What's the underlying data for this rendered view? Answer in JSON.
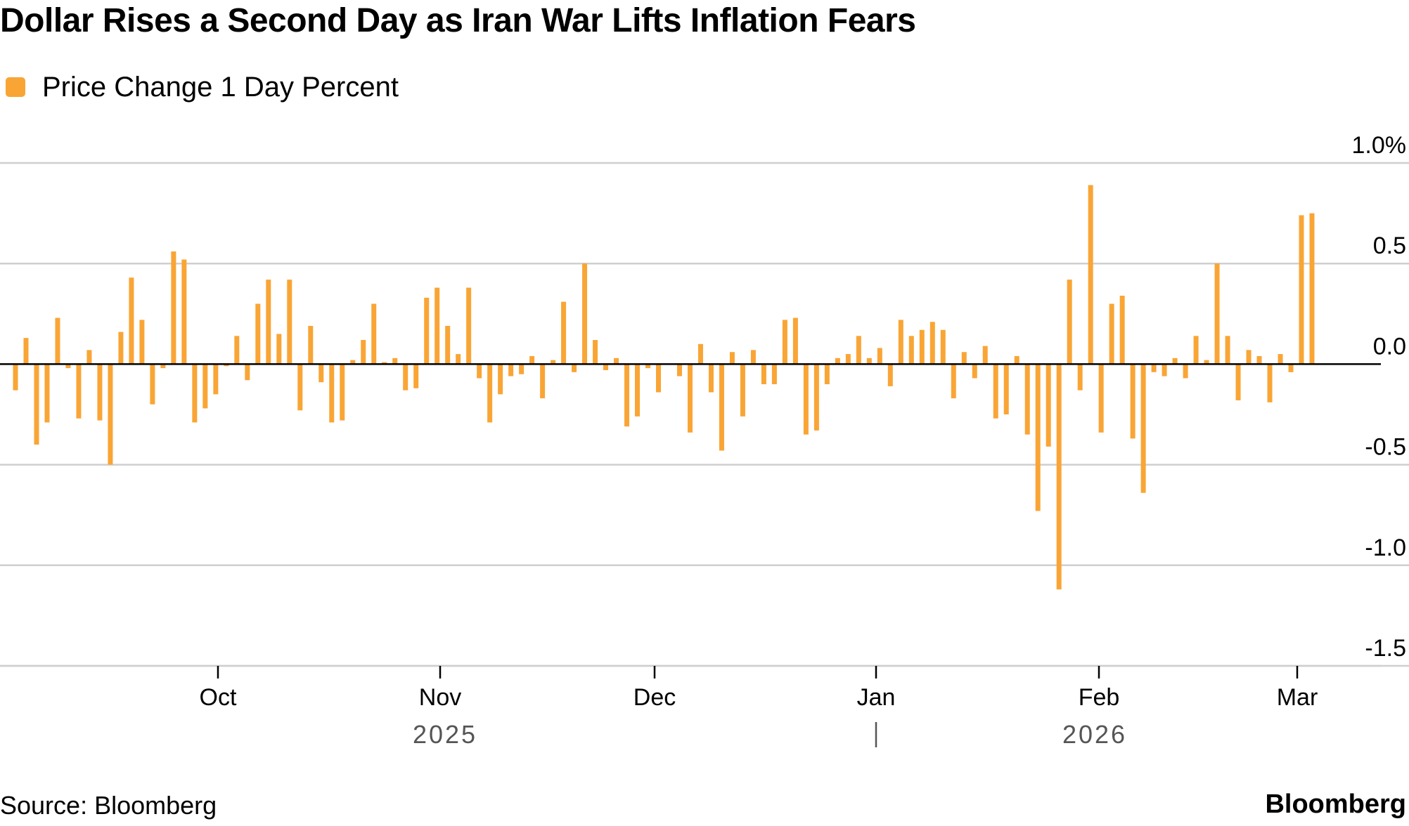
{
  "title": "Dollar Rises a Second Day as Iran War Lifts Inflation Fears",
  "source": "Source: Bloomberg",
  "brand": "Bloomberg",
  "chart_data": {
    "type": "bar",
    "bar_color": "#F9A535",
    "series": [
      {
        "name": "Price Change 1 Day Percent"
      }
    ],
    "ylim": [
      -1.5,
      1.0
    ],
    "yticks": [
      1.0,
      0.5,
      0.0,
      -0.5,
      -1.0,
      -1.5
    ],
    "ytick_labels": [
      "1.0%",
      "0.5",
      "0.0",
      "-0.5",
      "-1.0",
      "-1.5"
    ],
    "xtick_labels": [
      "Oct",
      "Nov",
      "Dec",
      "Jan",
      "Feb",
      "Mar"
    ],
    "year_labels": [
      "2025",
      "2026"
    ],
    "grid": true,
    "values": [
      -0.13,
      0.13,
      -0.4,
      -0.29,
      0.23,
      -0.02,
      -0.27,
      0.07,
      -0.28,
      -0.5,
      0.16,
      0.43,
      0.22,
      -0.2,
      -0.02,
      0.56,
      0.52,
      -0.29,
      -0.22,
      -0.15,
      -0.01,
      0.14,
      -0.08,
      0.3,
      0.42,
      0.15,
      0.42,
      -0.23,
      0.19,
      -0.09,
      -0.29,
      -0.28,
      0.02,
      0.12,
      0.3,
      0.01,
      0.03,
      -0.13,
      -0.12,
      0.33,
      0.38,
      0.19,
      0.05,
      0.38,
      -0.07,
      -0.29,
      -0.15,
      -0.06,
      -0.05,
      0.04,
      -0.17,
      0.02,
      0.31,
      -0.04,
      0.5,
      0.12,
      -0.03,
      0.03,
      -0.31,
      -0.26,
      -0.02,
      -0.14,
      0.0,
      -0.06,
      -0.34,
      0.1,
      -0.14,
      -0.43,
      0.06,
      -0.26,
      0.07,
      -0.1,
      -0.1,
      0.22,
      0.23,
      -0.35,
      -0.33,
      -0.1,
      0.03,
      0.05,
      0.14,
      0.03,
      0.08,
      -0.11,
      0.22,
      0.14,
      0.17,
      0.21,
      0.17,
      -0.17,
      0.06,
      -0.07,
      0.09,
      -0.27,
      -0.25,
      0.04,
      -0.35,
      -0.73,
      -0.41,
      -1.12,
      0.42,
      -0.13,
      0.89,
      -0.34,
      0.3,
      0.34,
      -0.37,
      -0.64,
      -0.04,
      -0.06,
      0.03,
      -0.07,
      0.14,
      0.02,
      0.5,
      0.14,
      -0.18,
      0.07,
      0.04,
      -0.19,
      0.05,
      -0.04,
      0.74,
      0.75
    ]
  }
}
